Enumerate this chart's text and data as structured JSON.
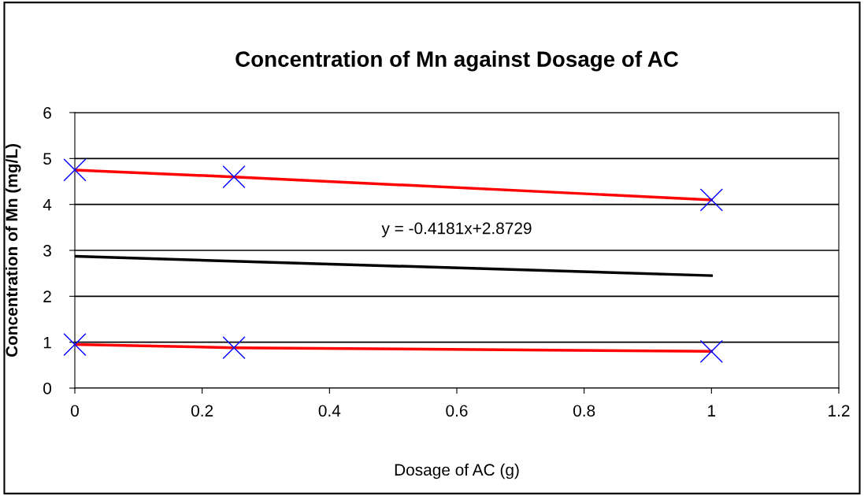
{
  "chart_data": {
    "type": "line",
    "title": "Concentration of Mn against Dosage of AC",
    "xlabel": "Dosage of AC (g)",
    "ylabel": "Concentration of Mn (mg/L)",
    "x": [
      0,
      0.25,
      1
    ],
    "series": [
      {
        "color": "#ff0000",
        "values": [
          4.75,
          4.6,
          4.1
        ],
        "marker": "cross"
      },
      {
        "color": "#ff0000",
        "values": [
          0.95,
          0.88,
          0.8
        ],
        "marker": "cross"
      },
      {
        "type": "line",
        "color": "#000000",
        "x": [
          0,
          1
        ],
        "values": [
          2.87,
          2.45
        ],
        "marker": "none"
      }
    ],
    "annotations": [
      "y = -0.4181x+2.8729"
    ],
    "xlim": [
      0,
      1.2
    ],
    "xticks": [
      0,
      0.2,
      0.4,
      0.6,
      0.8,
      1,
      1.2
    ],
    "ylim": [
      0,
      6
    ],
    "yticks": [
      0,
      1,
      2,
      3,
      4,
      5,
      6
    ],
    "grid": "y"
  }
}
